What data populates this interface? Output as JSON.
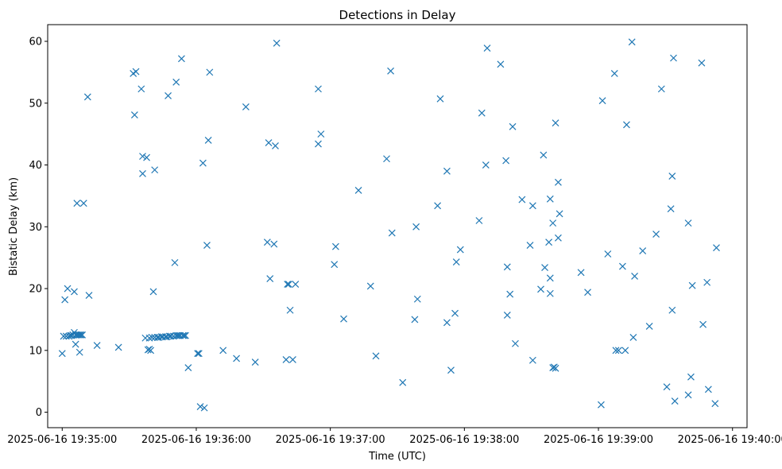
{
  "chart_data": {
    "type": "scatter",
    "title": "Detections in Delay",
    "xlabel": "Time (UTC)",
    "ylabel": "Bistatic Delay (km)",
    "x_unit": "seconds after 2025-06-16 19:35:00",
    "xlim": [
      -6.5,
      306.5
    ],
    "ylim": [
      -2.5,
      62.7
    ],
    "x_ticks": [
      {
        "value": 0,
        "label": "2025-06-16 19:35:00"
      },
      {
        "value": 60,
        "label": "2025-06-16 19:36:00"
      },
      {
        "value": 120,
        "label": "2025-06-16 19:37:00"
      },
      {
        "value": 180,
        "label": "2025-06-16 19:38:00"
      },
      {
        "value": 240,
        "label": "2025-06-16 19:39:00"
      },
      {
        "value": 300,
        "label": "2025-06-16 19:40:00"
      }
    ],
    "y_ticks": [
      {
        "value": 0,
        "label": "0"
      },
      {
        "value": 10,
        "label": "10"
      },
      {
        "value": 20,
        "label": "20"
      },
      {
        "value": 30,
        "label": "30"
      },
      {
        "value": 40,
        "label": "40"
      },
      {
        "value": 50,
        "label": "50"
      },
      {
        "value": 60,
        "label": "60"
      }
    ],
    "grid": false,
    "marker": "x",
    "color": "#1f77b4",
    "series": [
      {
        "name": "detections",
        "points": [
          [
            0.0,
            9.5
          ],
          [
            0.6,
            12.3
          ],
          [
            1.2,
            18.2
          ],
          [
            1.8,
            12.3
          ],
          [
            2.4,
            20.0
          ],
          [
            3.0,
            12.3
          ],
          [
            3.6,
            12.4
          ],
          [
            4.2,
            12.4
          ],
          [
            4.8,
            12.5
          ],
          [
            5.4,
            19.5
          ],
          [
            5.4,
            12.9
          ],
          [
            6.0,
            12.5
          ],
          [
            6.0,
            11.0
          ],
          [
            6.6,
            12.5
          ],
          [
            6.6,
            33.8
          ],
          [
            7.2,
            12.5
          ],
          [
            7.8,
            12.5
          ],
          [
            7.8,
            9.7
          ],
          [
            8.4,
            12.5
          ],
          [
            9.0,
            12.5
          ],
          [
            9.6,
            33.8
          ],
          [
            11.4,
            51.0
          ],
          [
            12.0,
            18.9
          ],
          [
            15.6,
            10.8
          ],
          [
            25.2,
            10.5
          ],
          [
            31.8,
            54.8
          ],
          [
            32.4,
            48.1
          ],
          [
            33.0,
            55.1
          ],
          [
            35.4,
            52.3
          ],
          [
            36.0,
            41.4
          ],
          [
            36.0,
            38.6
          ],
          [
            37.2,
            12.0
          ],
          [
            37.8,
            41.2
          ],
          [
            38.4,
            10.1
          ],
          [
            39.0,
            12.0
          ],
          [
            39.0,
            10.2
          ],
          [
            39.6,
            10.0
          ],
          [
            40.2,
            12.1
          ],
          [
            40.8,
            19.5
          ],
          [
            41.4,
            39.2
          ],
          [
            41.4,
            12.1
          ],
          [
            42.6,
            12.1
          ],
          [
            43.2,
            12.1
          ],
          [
            44.4,
            12.2
          ],
          [
            45.0,
            12.2
          ],
          [
            46.2,
            12.2
          ],
          [
            46.8,
            12.2
          ],
          [
            47.4,
            51.2
          ],
          [
            48.0,
            12.3
          ],
          [
            48.6,
            12.3
          ],
          [
            49.8,
            12.3
          ],
          [
            50.4,
            24.2
          ],
          [
            51.0,
            53.4
          ],
          [
            51.0,
            12.4
          ],
          [
            51.6,
            12.4
          ],
          [
            52.2,
            12.4
          ],
          [
            52.8,
            12.4
          ],
          [
            53.4,
            57.2
          ],
          [
            54.0,
            12.4
          ],
          [
            54.6,
            12.4
          ],
          [
            55.2,
            12.4
          ],
          [
            56.4,
            7.2
          ],
          [
            60.6,
            9.5
          ],
          [
            61.2,
            9.5
          ],
          [
            61.8,
            0.9
          ],
          [
            63.0,
            40.3
          ],
          [
            63.6,
            0.7
          ],
          [
            64.8,
            27.0
          ],
          [
            65.4,
            44.0
          ],
          [
            66.0,
            55.0
          ],
          [
            72.0,
            10.0
          ],
          [
            78.0,
            8.7
          ],
          [
            82.2,
            49.4
          ],
          [
            86.4,
            8.1
          ],
          [
            91.8,
            27.5
          ],
          [
            92.4,
            43.6
          ],
          [
            93.0,
            21.6
          ],
          [
            94.8,
            27.2
          ],
          [
            95.4,
            43.1
          ],
          [
            96.0,
            59.7
          ],
          [
            100.2,
            8.5
          ],
          [
            100.8,
            20.7
          ],
          [
            101.4,
            20.7
          ],
          [
            102.0,
            16.5
          ],
          [
            103.2,
            8.5
          ],
          [
            104.4,
            20.7
          ],
          [
            114.6,
            43.4
          ],
          [
            114.6,
            52.3
          ],
          [
            115.8,
            45.0
          ],
          [
            121.8,
            23.9
          ],
          [
            122.4,
            26.8
          ],
          [
            126.0,
            15.1
          ],
          [
            132.6,
            35.9
          ],
          [
            138.0,
            20.4
          ],
          [
            140.4,
            9.1
          ],
          [
            145.2,
            41.0
          ],
          [
            147.0,
            55.2
          ],
          [
            147.6,
            29.0
          ],
          [
            152.4,
            4.8
          ],
          [
            157.8,
            15.0
          ],
          [
            158.4,
            30.0
          ],
          [
            159.0,
            18.3
          ],
          [
            168.0,
            33.4
          ],
          [
            169.2,
            50.7
          ],
          [
            172.2,
            39.0
          ],
          [
            172.2,
            14.5
          ],
          [
            174.0,
            6.8
          ],
          [
            175.8,
            16.0
          ],
          [
            176.4,
            24.3
          ],
          [
            178.2,
            26.3
          ],
          [
            186.6,
            31.0
          ],
          [
            187.8,
            48.4
          ],
          [
            189.6,
            40.0
          ],
          [
            190.2,
            58.9
          ],
          [
            196.2,
            56.3
          ],
          [
            198.6,
            40.7
          ],
          [
            199.2,
            23.5
          ],
          [
            199.2,
            15.7
          ],
          [
            200.4,
            19.1
          ],
          [
            201.6,
            46.2
          ],
          [
            202.8,
            11.1
          ],
          [
            205.8,
            34.4
          ],
          [
            209.4,
            27.0
          ],
          [
            210.6,
            8.4
          ],
          [
            210.6,
            33.4
          ],
          [
            214.2,
            19.9
          ],
          [
            215.4,
            41.6
          ],
          [
            216.0,
            23.4
          ],
          [
            217.8,
            27.5
          ],
          [
            218.4,
            34.5
          ],
          [
            218.4,
            21.7
          ],
          [
            218.4,
            19.2
          ],
          [
            219.6,
            7.2
          ],
          [
            219.6,
            30.6
          ],
          [
            220.2,
            7.3
          ],
          [
            220.8,
            7.1
          ],
          [
            220.8,
            46.8
          ],
          [
            222.0,
            37.2
          ],
          [
            222.0,
            28.2
          ],
          [
            222.6,
            32.1
          ],
          [
            232.2,
            22.6
          ],
          [
            235.2,
            19.4
          ],
          [
            241.2,
            1.2
          ],
          [
            241.8,
            50.4
          ],
          [
            244.2,
            25.6
          ],
          [
            247.2,
            54.8
          ],
          [
            247.8,
            10.0
          ],
          [
            249.0,
            10.0
          ],
          [
            250.8,
            23.6
          ],
          [
            252.0,
            10.0
          ],
          [
            252.6,
            46.5
          ],
          [
            255.0,
            59.9
          ],
          [
            255.6,
            12.1
          ],
          [
            256.2,
            22.0
          ],
          [
            259.8,
            26.1
          ],
          [
            262.8,
            13.9
          ],
          [
            265.8,
            28.8
          ],
          [
            268.2,
            52.3
          ],
          [
            270.6,
            4.1
          ],
          [
            272.4,
            32.9
          ],
          [
            273.0,
            38.2
          ],
          [
            273.0,
            16.5
          ],
          [
            273.6,
            57.3
          ],
          [
            274.2,
            1.8
          ],
          [
            280.2,
            30.6
          ],
          [
            280.2,
            2.8
          ],
          [
            281.4,
            5.7
          ],
          [
            282.0,
            20.5
          ],
          [
            286.2,
            56.5
          ],
          [
            286.8,
            14.2
          ],
          [
            288.6,
            21.0
          ],
          [
            289.2,
            3.7
          ],
          [
            292.2,
            1.4
          ],
          [
            292.8,
            26.6
          ]
        ]
      }
    ]
  }
}
